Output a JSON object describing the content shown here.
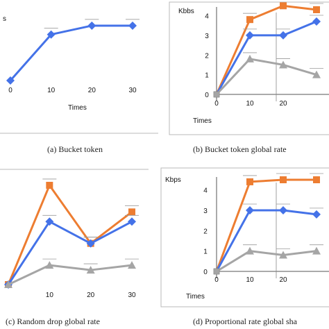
{
  "captions": {
    "a": "(a) Bucket token",
    "b": "(b) Bucket token global rate",
    "c": "(c) Random drop global rate",
    "d": "(d) Proportional rate global sha"
  },
  "colors": {
    "orange": "#ED7D31",
    "blue": "#4472E8",
    "gray": "#A5A5A5"
  },
  "chart_data": [
    {
      "panel": "a",
      "type": "line",
      "ylabel": "s",
      "xlabel": "Times",
      "x_ticks": [
        "0",
        "10",
        "20",
        "30"
      ],
      "y_ticks": [],
      "xlim": [
        0,
        30
      ],
      "ylim": [
        0,
        4
      ],
      "series": [
        {
          "color": "blue",
          "marker": "diamond",
          "x": [
            0,
            10,
            20,
            30
          ],
          "y": [
            0,
            2.6,
            3.1,
            3.1
          ]
        }
      ]
    },
    {
      "panel": "b",
      "type": "line",
      "ylabel": "Kbbs",
      "xlabel": "Times",
      "x_ticks": [
        "0",
        "10",
        "20"
      ],
      "y_ticks": [
        "0",
        "1",
        "2",
        "3",
        "4"
      ],
      "xlim": [
        0,
        35
      ],
      "ylim": [
        0,
        4.3
      ],
      "series": [
        {
          "color": "orange",
          "marker": "square",
          "x": [
            0,
            10,
            20,
            30
          ],
          "y": [
            0,
            3.8,
            4.5,
            4.3
          ]
        },
        {
          "color": "blue",
          "marker": "diamond",
          "x": [
            0,
            10,
            20,
            30
          ],
          "y": [
            0,
            3.0,
            3.0,
            3.7
          ]
        },
        {
          "color": "gray",
          "marker": "triangle",
          "x": [
            0,
            10,
            20,
            30
          ],
          "y": [
            0,
            1.8,
            1.5,
            1.0
          ]
        }
      ]
    },
    {
      "panel": "c",
      "type": "line",
      "ylabel": "",
      "xlabel": "",
      "x_ticks": [
        "10",
        "20",
        "30"
      ],
      "y_ticks": [],
      "xlim": [
        0,
        30
      ],
      "ylim": [
        0,
        4.5
      ],
      "series": [
        {
          "color": "orange",
          "marker": "square",
          "x": [
            0,
            10,
            20,
            30
          ],
          "y": [
            0,
            4.1,
            1.7,
            3.0
          ]
        },
        {
          "color": "blue",
          "marker": "diamond",
          "x": [
            0,
            10,
            20,
            30
          ],
          "y": [
            0,
            2.6,
            1.7,
            2.6
          ]
        },
        {
          "color": "gray",
          "marker": "triangle",
          "x": [
            0,
            10,
            20,
            30
          ],
          "y": [
            0,
            0.8,
            0.6,
            0.8
          ]
        }
      ]
    },
    {
      "panel": "d",
      "type": "line",
      "ylabel": "Kbps",
      "xlabel": "Times",
      "x_ticks": [
        "0",
        "10",
        "20"
      ],
      "y_ticks": [
        "0",
        "1",
        "2",
        "3",
        "4"
      ],
      "xlim": [
        0,
        35
      ],
      "ylim": [
        0,
        4.5
      ],
      "series": [
        {
          "color": "orange",
          "marker": "square",
          "x": [
            0,
            10,
            20,
            30
          ],
          "y": [
            0,
            4.4,
            4.5,
            4.5
          ]
        },
        {
          "color": "blue",
          "marker": "diamond",
          "x": [
            0,
            10,
            20,
            30
          ],
          "y": [
            0,
            3.0,
            3.0,
            2.8
          ]
        },
        {
          "color": "gray",
          "marker": "triangle",
          "x": [
            0,
            10,
            20,
            30
          ],
          "y": [
            0,
            1.0,
            0.8,
            1.0
          ]
        }
      ]
    }
  ]
}
